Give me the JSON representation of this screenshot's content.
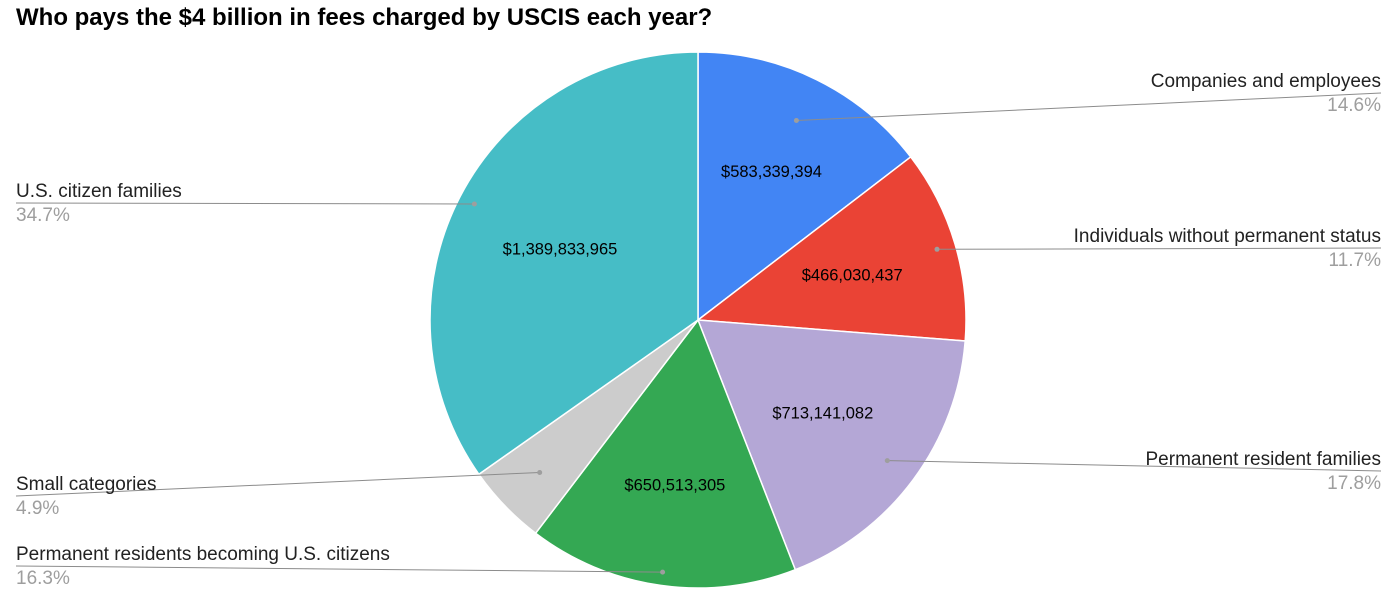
{
  "chart_data": {
    "type": "pie",
    "title": "Who pays the $4 billion in fees charged by USCIS each year?",
    "start_angle_deg": 0,
    "direction": "clockwise",
    "slices": [
      {
        "name": "Companies and employees",
        "value": 583339394,
        "value_label": "$583,339,394",
        "percent_label": "14.6%",
        "color": "#4285f4",
        "legend_side": "right"
      },
      {
        "name": "Individuals without permanent status",
        "value": 466030437,
        "value_label": "$466,030,437",
        "percent_label": "11.7%",
        "color": "#ea4335",
        "legend_side": "right"
      },
      {
        "name": "Permanent resident families",
        "value": 713141082,
        "value_label": "$713,141,082",
        "percent_label": "17.8%",
        "color": "#b4a7d6",
        "legend_side": "right"
      },
      {
        "name": "Permanent residents becoming U.S. citizens",
        "value": 650513305,
        "value_label": "$650,513,305",
        "percent_label": "16.3%",
        "color": "#34a853",
        "legend_side": "left"
      },
      {
        "name": "Small categories",
        "value": 195000000,
        "value_label": "",
        "percent_label": "4.9%",
        "color": "#cccccc",
        "legend_side": "left"
      },
      {
        "name": "U.S. citizen families",
        "value": 1389833965,
        "value_label": "$1,389,833,965",
        "percent_label": "34.7%",
        "color": "#46bdc6",
        "legend_side": "left"
      }
    ],
    "legend_placement": "labeled leader lines on left and right"
  }
}
